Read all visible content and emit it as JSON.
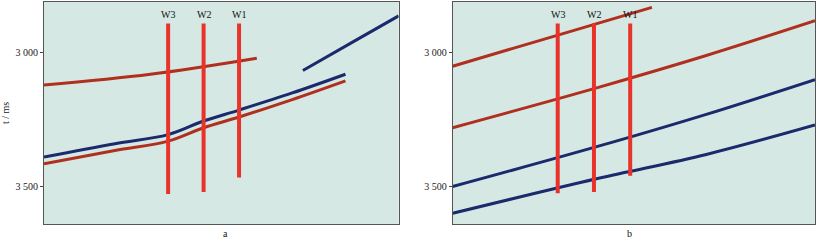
{
  "chart_data": [
    {
      "type": "line",
      "title": "a",
      "ylabel": "t / ms",
      "xlim": [
        0,
        1
      ],
      "ylim": [
        3640,
        2810
      ],
      "yticks": [
        {
          "value": 3000,
          "label": "3 000"
        },
        {
          "value": 3500,
          "label": "3 500"
        }
      ],
      "tick_labels": "y",
      "grid": false,
      "wells": [
        {
          "label": "W3",
          "x": 0.35,
          "top": 2890,
          "bottom": 3528
        },
        {
          "label": "W2",
          "x": 0.45,
          "top": 2890,
          "bottom": 3520
        },
        {
          "label": "W1",
          "x": 0.55,
          "top": 2890,
          "bottom": 3466
        }
      ],
      "well_color": "#e8332a",
      "series": [
        {
          "color": "#1a2a6c",
          "x": [
            0,
            0.2,
            0.35,
            0.45,
            0.55,
            0.7,
            0.85
          ],
          "values": [
            3390,
            3340,
            3306,
            3255,
            3214,
            3150,
            3080
          ]
        },
        {
          "color": "#b03020",
          "x": [
            0,
            0.2,
            0.35,
            0.45,
            0.55,
            0.7,
            0.85
          ],
          "values": [
            3415,
            3365,
            3330,
            3280,
            3240,
            3175,
            3105
          ]
        },
        {
          "color": "#1a2a6c",
          "x": [
            0.73,
            0.87,
            1.0
          ],
          "values": [
            3066,
            2960,
            2862
          ]
        },
        {
          "color": "#b03020",
          "x": [
            0,
            0.3,
            0.6
          ],
          "values": [
            3120,
            3080,
            3020
          ]
        }
      ]
    },
    {
      "type": "line",
      "title": "b",
      "xlim": [
        0,
        1
      ],
      "ylim": [
        3640,
        2810
      ],
      "yticks": [
        {
          "value": 3000,
          "label": "3 000"
        },
        {
          "value": 3500,
          "label": "3 500"
        }
      ],
      "tick_labels": "y",
      "grid": false,
      "wells": [
        {
          "label": "W3",
          "x": 0.29,
          "top": 2890,
          "bottom": 3525
        },
        {
          "label": "W2",
          "x": 0.39,
          "top": 2890,
          "bottom": 3520
        },
        {
          "label": "W1",
          "x": 0.49,
          "top": 2890,
          "bottom": 3460
        }
      ],
      "well_color": "#e8332a",
      "series": [
        {
          "color": "#1a2a6c",
          "x": [
            0,
            0.4,
            0.7,
            1.0
          ],
          "values": [
            3500,
            3350,
            3230,
            3100
          ]
        },
        {
          "color": "#b03020",
          "x": [
            0,
            0.4,
            0.7,
            1.0
          ],
          "values": [
            3280,
            3130,
            3010,
            2880
          ]
        },
        {
          "color": "#1a2a6c",
          "x": [
            0,
            0.4,
            0.7,
            1.0
          ],
          "values": [
            3600,
            3470,
            3380,
            3270
          ]
        },
        {
          "color": "#b03020",
          "x": [
            0,
            0.3,
            0.55
          ],
          "values": [
            3050,
            2930,
            2830
          ]
        }
      ]
    }
  ]
}
